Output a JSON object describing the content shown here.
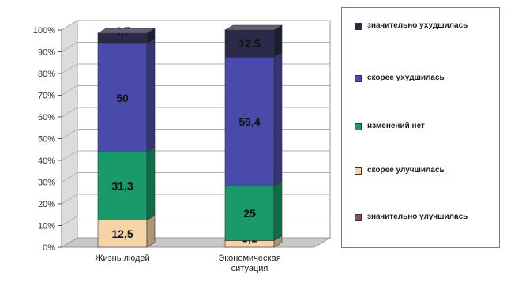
{
  "chart_data": {
    "type": "bar",
    "stacked": true,
    "percent": true,
    "categories": [
      "Жизнь людей",
      "Экономическая ситуация"
    ],
    "series": [
      {
        "name": "значительно улучшилась",
        "values": [
          0,
          0
        ],
        "color": "#8b4a6b"
      },
      {
        "name": "скорее улучшилась",
        "values": [
          12.5,
          3.1
        ],
        "color": "#f5d5a8"
      },
      {
        "name": "изменений нет",
        "values": [
          31.3,
          25
        ],
        "color": "#1a9a6a"
      },
      {
        "name": "скорее ухудшилась",
        "values": [
          50,
          59.4
        ],
        "color": "#4a4aaa"
      },
      {
        "name": "значительно ухудшилась",
        "values": [
          4.7,
          12.5
        ],
        "color": "#2a2a48"
      }
    ],
    "data_labels": [
      [
        "",
        "12,5",
        "31,3",
        "50",
        "4,7"
      ],
      [
        "",
        "3,1",
        "25",
        "59,4",
        "12,5"
      ]
    ],
    "y_ticks": [
      "0%",
      "10%",
      "20%",
      "30%",
      "40%",
      "50%",
      "60%",
      "70%",
      "80%",
      "90%",
      "100%"
    ],
    "ylim": [
      0,
      100
    ],
    "legend_position": "right",
    "grid": true
  }
}
